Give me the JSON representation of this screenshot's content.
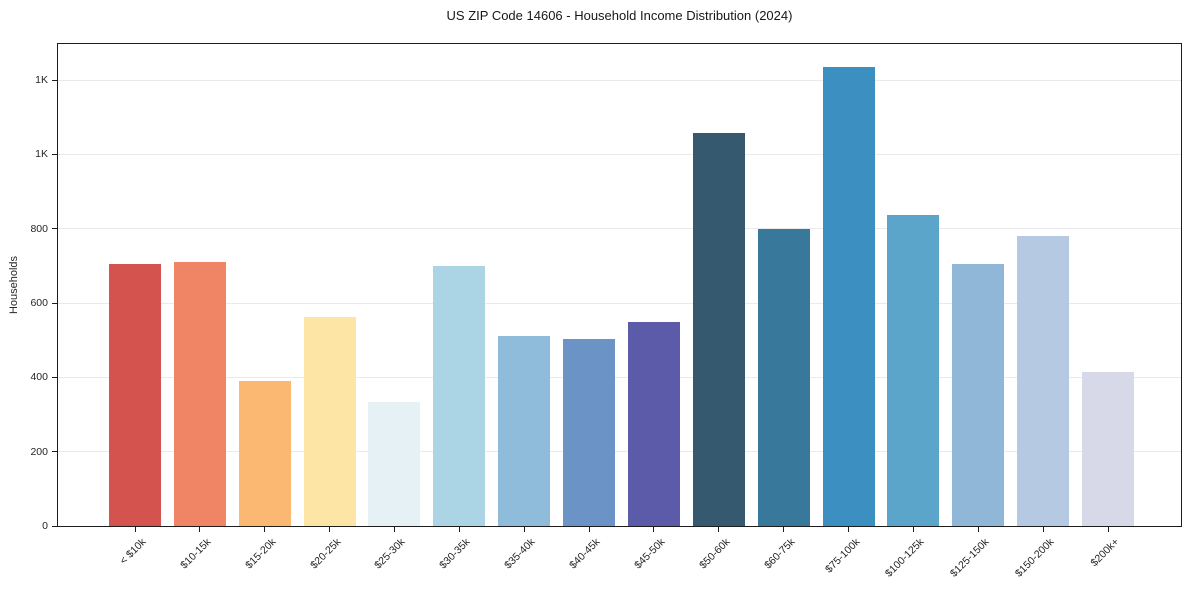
{
  "page": {
    "title": "US ZIP Code 14606 - Household Income Distribution (2024)"
  },
  "chart_data": {
    "type": "bar",
    "title": "US ZIP Code 14606 - Household Income Distribution (2024)",
    "xlabel": "",
    "ylabel": "Households",
    "ylim": [
      0,
      1297
    ],
    "grid": "horizontal",
    "legend": "none",
    "background_color": "#ffffff",
    "frame_color": "#1c1c1c",
    "gridline_color": "#eaeaea",
    "y_ticks": [
      {
        "value": 0,
        "label": "0"
      },
      {
        "value": 200,
        "label": "200"
      },
      {
        "value": 400,
        "label": "400"
      },
      {
        "value": 600,
        "label": "600"
      },
      {
        "value": 800,
        "label": "800"
      },
      {
        "value": 1000,
        "label": "1K"
      },
      {
        "value": 1200,
        "label": "1K"
      }
    ],
    "categories": [
      "< $10k",
      "$10-15k",
      "$15-20k",
      "$20-25k",
      "$25-30k",
      "$30-35k",
      "$35-40k",
      "$40-45k",
      "$45-50k",
      "$50-60k",
      "$60-75k",
      "$75-100k",
      "$100-125k",
      "$125-150k",
      "$150-200k",
      "$200k+"
    ],
    "values": [
      705,
      710,
      390,
      562,
      335,
      700,
      512,
      502,
      550,
      1057,
      800,
      1235,
      838,
      706,
      780,
      415
    ],
    "bar_colors": [
      "#d4534f",
      "#f08566",
      "#fab872",
      "#fde5a6",
      "#e5f1f4",
      "#abd4e5",
      "#90bcdc",
      "#6b93c6",
      "#5c5baa",
      "#355a70",
      "#38789b",
      "#3b90c1",
      "#5ba4ca",
      "#90b6d8",
      "#b5c9e2",
      "#d8d9e8"
    ]
  }
}
